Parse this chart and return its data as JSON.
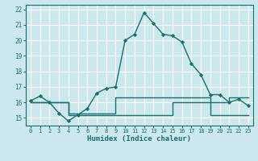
{
  "xlabel": "Humidex (Indice chaleur)",
  "xlim": [
    -0.5,
    23.5
  ],
  "ylim": [
    14.5,
    22.3
  ],
  "yticks": [
    15,
    16,
    17,
    18,
    19,
    20,
    21,
    22
  ],
  "xticks": [
    0,
    1,
    2,
    3,
    4,
    5,
    6,
    7,
    8,
    9,
    10,
    11,
    12,
    13,
    14,
    15,
    16,
    17,
    18,
    19,
    20,
    21,
    22,
    23
  ],
  "bg_color": "#cce8ec",
  "grid_color": "#ffffff",
  "line_color": "#1a6e6e",
  "line1_x": [
    0,
    1,
    2,
    3,
    4,
    5,
    6,
    7,
    8,
    9,
    10,
    11,
    12,
    13,
    14,
    15,
    16,
    17,
    18,
    19,
    20,
    21,
    22,
    23
  ],
  "line1_y": [
    16.1,
    16.4,
    16.0,
    15.3,
    14.8,
    15.2,
    15.6,
    16.6,
    16.9,
    17.0,
    20.0,
    20.4,
    21.8,
    21.1,
    20.4,
    20.3,
    19.9,
    18.5,
    17.8,
    16.5,
    16.5,
    16.0,
    16.2,
    15.8
  ],
  "line2_x": [
    0,
    2,
    2,
    4,
    4,
    9,
    9,
    14,
    14,
    19,
    19,
    21,
    21,
    23
  ],
  "line2_y": [
    16.0,
    16.0,
    16.0,
    16.0,
    15.3,
    15.3,
    16.3,
    16.3,
    16.3,
    16.3,
    16.0,
    16.0,
    16.3,
    16.3
  ],
  "line3_x": [
    0,
    2,
    2,
    4,
    4,
    15,
    15,
    19,
    19,
    21,
    21,
    23
  ],
  "line3_y": [
    16.0,
    16.0,
    16.0,
    16.0,
    15.2,
    15.2,
    16.0,
    16.0,
    15.2,
    15.2,
    15.2,
    15.2
  ]
}
